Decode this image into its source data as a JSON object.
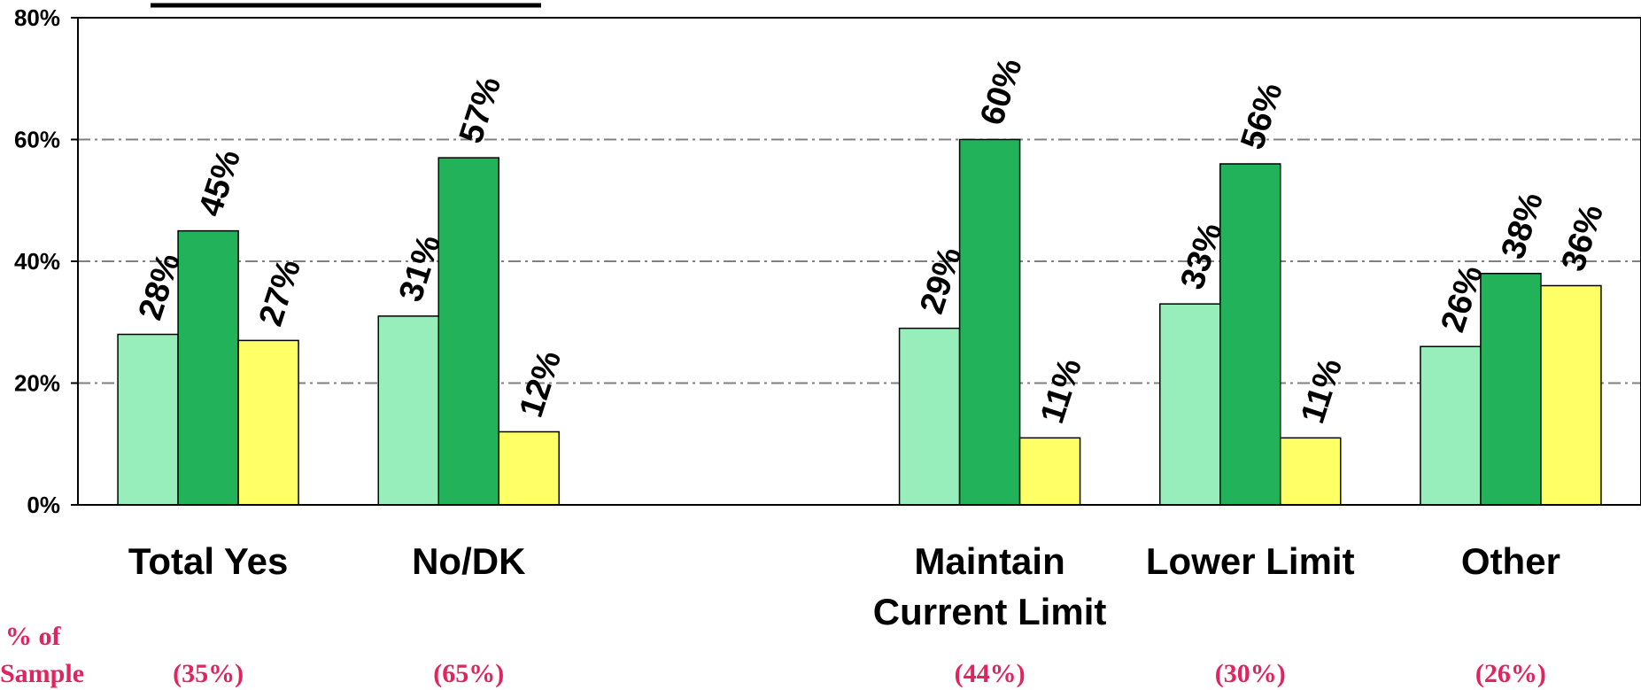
{
  "chart_data": {
    "type": "bar",
    "categories": [
      [
        "Total Yes"
      ],
      [
        "No/DK"
      ],
      [
        "Maintain",
        "Current Limit"
      ],
      [
        "Lower Limit"
      ],
      [
        "Other"
      ]
    ],
    "slot_positions": [
      0,
      1,
      3,
      4,
      5
    ],
    "slot_count": 6,
    "series": [
      {
        "values": [
          28,
          31,
          29,
          33,
          26
        ],
        "color": "#98EEBA",
        "labels": [
          "28%",
          "31%",
          "29%",
          "33%",
          "26%"
        ]
      },
      {
        "values": [
          45,
          57,
          60,
          56,
          38
        ],
        "color": "#22B25A",
        "labels": [
          "45%",
          "57%",
          "60%",
          "56%",
          "38%"
        ]
      },
      {
        "values": [
          27,
          12,
          11,
          11,
          36
        ],
        "color": "#FFFF66",
        "labels": [
          "27%",
          "12%",
          "11%",
          "11%",
          "36%"
        ]
      }
    ],
    "ylim": [
      0,
      80
    ],
    "yticks": [
      0,
      20,
      40,
      60,
      80
    ],
    "ytick_labels": [
      "0%",
      "20%",
      "40%",
      "60%",
      "80%"
    ],
    "gridlines": [
      20,
      40,
      60
    ],
    "grid_style": "dash-dot",
    "sample_label": [
      "% of",
      "Sample"
    ],
    "sample_values": [
      "(35%)",
      "(65%)",
      "(44%)",
      "(30%)",
      "(26%)"
    ],
    "sample_color": "#E0245E"
  }
}
